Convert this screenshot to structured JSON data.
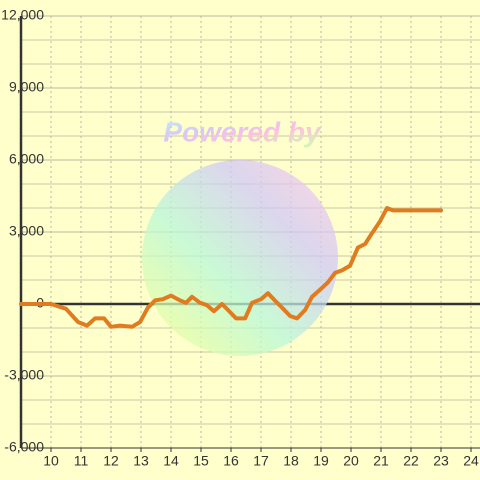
{
  "chart_data": {
    "type": "line",
    "watermark": "Powered by",
    "x": [
      9,
      10,
      10.5,
      10.9,
      11.2,
      11.47,
      11.77,
      12,
      12.3,
      12.7,
      12.97,
      13.23,
      13.47,
      13.73,
      14,
      14.3,
      14.5,
      14.7,
      14.97,
      15.2,
      15.43,
      15.7,
      15.9,
      16.17,
      16.47,
      16.7,
      17,
      17.23,
      17.5,
      17.7,
      17.97,
      18.2,
      18.47,
      18.7,
      18.97,
      19.23,
      19.47,
      19.7,
      19.97,
      20.23,
      20.47,
      20.7,
      20.97,
      21.2,
      21.4,
      23
    ],
    "values": [
      0,
      0,
      -200,
      -750,
      -900,
      -600,
      -600,
      -950,
      -900,
      -950,
      -750,
      -150,
      150,
      200,
      350,
      150,
      50,
      300,
      50,
      -50,
      -300,
      0,
      -250,
      -600,
      -600,
      50,
      200,
      450,
      100,
      -150,
      -500,
      -600,
      -250,
      300,
      600,
      900,
      1300,
      1400,
      1600,
      2350,
      2500,
      2950,
      3450,
      4000,
      3900,
      3900
    ],
    "color": "#e07b20",
    "xlim": [
      9,
      24.3
    ],
    "xticks": [
      10,
      11,
      12,
      13,
      14,
      15,
      16,
      17,
      18,
      19,
      20,
      21,
      22,
      23,
      24
    ],
    "ylim": [
      -6000,
      12000
    ],
    "yticks": [
      {
        "value": -6000,
        "label": "-6,000"
      },
      {
        "value": -3000,
        "label": "-3,000"
      },
      0,
      {
        "value": 3000,
        "label": "3,000"
      },
      {
        "value": 6000,
        "label": "6,000"
      },
      {
        "value": 9000,
        "label": "9,000"
      },
      {
        "value": 12000,
        "label": "12,000"
      }
    ],
    "yminorticks": [
      -5000,
      -4000,
      -2000,
      -1000,
      1000,
      2000,
      4000,
      5000,
      7000,
      8000,
      10000,
      11000
    ],
    "grid": true
  }
}
